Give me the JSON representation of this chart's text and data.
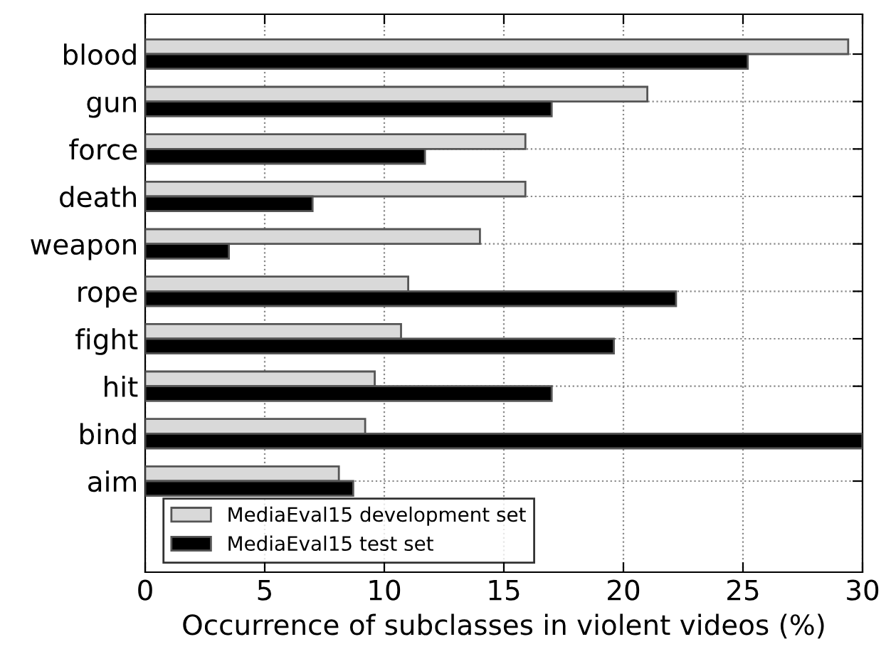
{
  "chart_data": {
    "type": "bar",
    "orientation": "horizontal",
    "xlabel": "Occurrence of subclasses in violent videos (%)",
    "categories": [
      "blood",
      "gun",
      "force",
      "death",
      "weapon",
      "rope",
      "fight",
      "hit",
      "bind",
      "aim"
    ],
    "series": [
      {
        "name": "MediaEval15 development set",
        "color": "#d9d9d9",
        "values": [
          29.4,
          21.0,
          15.9,
          15.9,
          14.0,
          11.0,
          10.7,
          9.6,
          9.2,
          8.1
        ]
      },
      {
        "name": "MediaEval15 test set",
        "color": "#000000",
        "values": [
          25.2,
          17.0,
          11.7,
          7.0,
          3.5,
          22.2,
          19.6,
          17.0,
          30.0,
          8.7
        ]
      }
    ],
    "xlim": [
      0,
      30
    ],
    "xticks": [
      0,
      5,
      10,
      15,
      20,
      25,
      30
    ],
    "grid": true,
    "legend": "bottom left"
  }
}
